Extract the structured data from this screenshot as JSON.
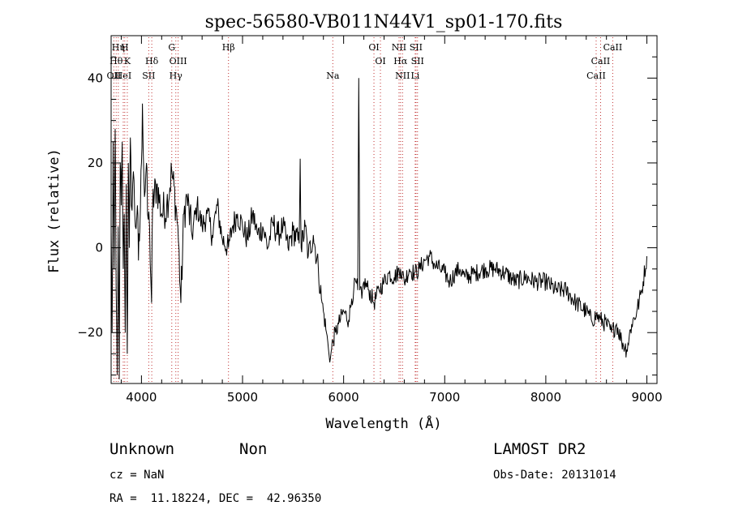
{
  "chart_data": {
    "type": "line",
    "title": "spec-56580-VB011N44V1_sp01-170.fits",
    "xlabel": "Wavelength (Å)",
    "ylabel": "Flux (relative)",
    "xlim": [
      3700,
      9100
    ],
    "ylim": [
      -32,
      50
    ],
    "xticks": [
      4000,
      5000,
      6000,
      7000,
      8000,
      9000
    ],
    "yticks": [
      -20,
      0,
      20,
      40
    ],
    "x_minor_step": 200,
    "y_minor_step": 5,
    "grid": false,
    "colors": {
      "spectrum": "#000000",
      "marker": "#c03030",
      "frame": "#000000"
    },
    "spectrum_anchors": [
      [
        3700,
        4
      ],
      [
        3710,
        -20
      ],
      [
        3720,
        25
      ],
      [
        3730,
        -5
      ],
      [
        3740,
        28
      ],
      [
        3750,
        -10
      ],
      [
        3760,
        -30
      ],
      [
        3770,
        5
      ],
      [
        3780,
        -31
      ],
      [
        3790,
        20
      ],
      [
        3800,
        10
      ],
      [
        3810,
        25
      ],
      [
        3820,
        -5
      ],
      [
        3830,
        8
      ],
      [
        3840,
        -20
      ],
      [
        3850,
        15
      ],
      [
        3860,
        -25
      ],
      [
        3870,
        20
      ],
      [
        3880,
        0
      ],
      [
        3890,
        26
      ],
      [
        3900,
        10
      ],
      [
        3920,
        18
      ],
      [
        3940,
        5
      ],
      [
        3960,
        10
      ],
      [
        3970,
        -3
      ],
      [
        3985,
        5
      ],
      [
        4000,
        20
      ],
      [
        4010,
        34
      ],
      [
        4030,
        12
      ],
      [
        4050,
        20
      ],
      [
        4060,
        8
      ],
      [
        4080,
        5
      ],
      [
        4100,
        -13
      ],
      [
        4110,
        10
      ],
      [
        4150,
        15
      ],
      [
        4200,
        8
      ],
      [
        4250,
        10
      ],
      [
        4300,
        18
      ],
      [
        4340,
        10
      ],
      [
        4360,
        5
      ],
      [
        4390,
        -13
      ],
      [
        4420,
        8
      ],
      [
        4450,
        12
      ],
      [
        4500,
        3
      ],
      [
        4550,
        10
      ],
      [
        4600,
        5
      ],
      [
        4650,
        8
      ],
      [
        4700,
        3
      ],
      [
        4750,
        10
      ],
      [
        4800,
        2
      ],
      [
        4861,
        0
      ],
      [
        4900,
        5
      ],
      [
        4950,
        8
      ],
      [
        5000,
        5
      ],
      [
        5050,
        2
      ],
      [
        5100,
        8
      ],
      [
        5150,
        3
      ],
      [
        5200,
        5
      ],
      [
        5250,
        0
      ],
      [
        5300,
        6
      ],
      [
        5350,
        3
      ],
      [
        5400,
        5
      ],
      [
        5450,
        0
      ],
      [
        5500,
        4
      ],
      [
        5560,
        1
      ],
      [
        5570,
        21
      ],
      [
        5580,
        0
      ],
      [
        5620,
        5
      ],
      [
        5650,
        -2
      ],
      [
        5700,
        3
      ],
      [
        5750,
        -5
      ],
      [
        5780,
        -12
      ],
      [
        5800,
        -15
      ],
      [
        5830,
        -20
      ],
      [
        5850,
        -24
      ],
      [
        5870,
        -26
      ],
      [
        5893,
        -22
      ],
      [
        5920,
        -20
      ],
      [
        5950,
        -18
      ],
      [
        6000,
        -15
      ],
      [
        6050,
        -17
      ],
      [
        6080,
        -12
      ],
      [
        6100,
        -10
      ],
      [
        6120,
        -8
      ],
      [
        6140,
        -10
      ],
      [
        6150,
        40
      ],
      [
        6160,
        -10
      ],
      [
        6180,
        -12
      ],
      [
        6200,
        -8
      ],
      [
        6250,
        -10
      ],
      [
        6300,
        -13
      ],
      [
        6350,
        -10
      ],
      [
        6400,
        -8
      ],
      [
        6450,
        -6
      ],
      [
        6500,
        -7
      ],
      [
        6563,
        -5
      ],
      [
        6600,
        -8
      ],
      [
        6650,
        -5
      ],
      [
        6700,
        -6
      ],
      [
        6750,
        -5
      ],
      [
        6800,
        -3
      ],
      [
        6850,
        -2
      ],
      [
        6900,
        -4
      ],
      [
        6950,
        -5
      ],
      [
        7000,
        -6
      ],
      [
        7050,
        -8
      ],
      [
        7100,
        -6
      ],
      [
        7150,
        -5
      ],
      [
        7200,
        -7
      ],
      [
        7300,
        -6
      ],
      [
        7400,
        -5
      ],
      [
        7500,
        -5
      ],
      [
        7600,
        -6
      ],
      [
        7700,
        -8
      ],
      [
        7800,
        -7
      ],
      [
        7900,
        -8
      ],
      [
        8000,
        -8
      ],
      [
        8100,
        -10
      ],
      [
        8200,
        -10
      ],
      [
        8300,
        -13
      ],
      [
        8400,
        -15
      ],
      [
        8450,
        -17
      ],
      [
        8500,
        -16
      ],
      [
        8542,
        -17
      ],
      [
        8600,
        -18
      ],
      [
        8650,
        -20
      ],
      [
        8700,
        -18
      ],
      [
        8750,
        -22
      ],
      [
        8800,
        -24
      ],
      [
        8850,
        -18
      ],
      [
        8900,
        -15
      ],
      [
        8950,
        -10
      ],
      [
        9000,
        -2
      ]
    ],
    "lines": [
      {
        "label": "OII",
        "x": 3727,
        "row": 3
      },
      {
        "label": "Hθ",
        "x": 3750,
        "row": 2
      },
      {
        "label": "Hη",
        "x": 3771,
        "row": 1
      },
      {
        "label": "H",
        "x": 3835,
        "row": 1
      },
      {
        "label": "HeI",
        "x": 3820,
        "row": 3
      },
      {
        "label": "K",
        "x": 3860,
        "row": 2
      },
      {
        "label": "SII",
        "x": 4072,
        "row": 3
      },
      {
        "label": "Hδ",
        "x": 4102,
        "row": 2
      },
      {
        "label": "G",
        "x": 4300,
        "row": 1
      },
      {
        "label": "OIII",
        "x": 4363,
        "row": 2
      },
      {
        "label": "Hγ",
        "x": 4340,
        "row": 3
      },
      {
        "label": "Hβ",
        "x": 4861,
        "row": 1
      },
      {
        "label": "Na",
        "x": 5893,
        "row": 3
      },
      {
        "label": "OI",
        "x": 6300,
        "row": 1
      },
      {
        "label": "OI",
        "x": 6364,
        "row": 2
      },
      {
        "label": "NII",
        "x": 6548,
        "row": 1
      },
      {
        "label": "Hα",
        "x": 6563,
        "row": 2
      },
      {
        "label": "NII",
        "x": 6583,
        "row": 3
      },
      {
        "label": "SII",
        "x": 6716,
        "row": 1
      },
      {
        "label": "SII",
        "x": 6731,
        "row": 2
      },
      {
        "label": "Li",
        "x": 6708,
        "row": 3
      },
      {
        "label": "CaII",
        "x": 8662,
        "row": 1
      },
      {
        "label": "CaII",
        "x": 8542,
        "row": 2
      },
      {
        "label": "CaII",
        "x": 8498,
        "row": 3
      }
    ]
  },
  "info": {
    "class": "Unknown",
    "subclass": "Non",
    "survey": "LAMOST DR2",
    "cz": "cz = NaN",
    "obs_date": "Obs-Date: 20131014",
    "coords": "RA =  11.18224, DEC =  42.96350"
  }
}
